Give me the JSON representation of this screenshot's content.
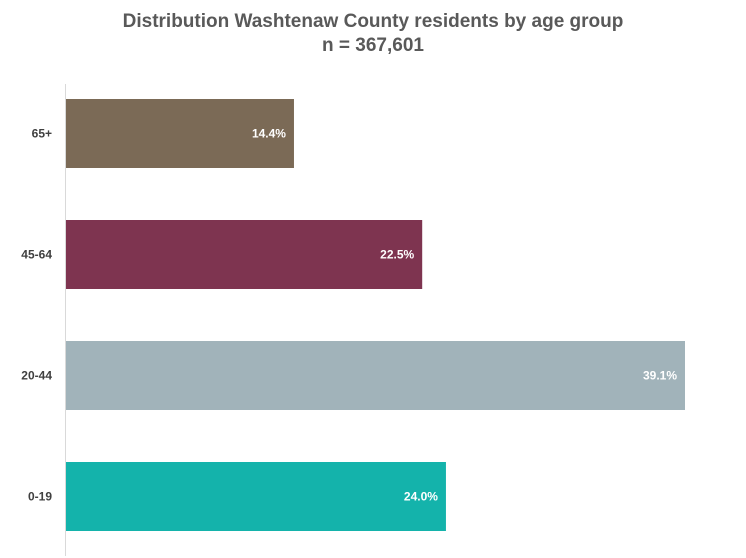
{
  "chart_data": {
    "type": "bar",
    "orientation": "horizontal",
    "title": "Distribution Washtenaw County residents by age group",
    "subtitle": "n = 367,601",
    "categories": [
      "65+",
      "45-64",
      "20-44",
      "0-19"
    ],
    "values": [
      14.4,
      22.5,
      39.1,
      24.0
    ],
    "data_labels": [
      "14.4%",
      "22.5%",
      "39.1%",
      "24.0%"
    ],
    "colors": [
      "#7b6a56",
      "#7e3450",
      "#a1b3ba",
      "#14b3ab"
    ],
    "xlim": [
      0,
      39.1
    ],
    "xlabel": "",
    "ylabel": "",
    "grid": false,
    "legend": "none"
  }
}
